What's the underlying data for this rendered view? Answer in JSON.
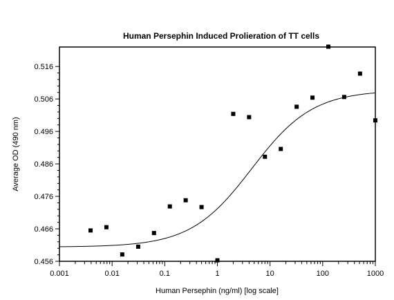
{
  "chart_data": {
    "type": "scatter",
    "title": "Human Persephin Induced Prolieration of TT cells",
    "xlabel": "Human Persephin (ng/ml) [log scale]",
    "ylabel": "Average OD (490 nm)",
    "x_scale": "log",
    "xlim": [
      0.001,
      1000
    ],
    "ylim": [
      0.456,
      0.522
    ],
    "x_ticks": [
      "0.001",
      "0.01",
      "0.1",
      "1",
      "10",
      "100",
      "1000"
    ],
    "y_ticks": [
      "0.456",
      "0.466",
      "0.476",
      "0.486",
      "0.496",
      "0.506",
      "0.516"
    ],
    "grid": false,
    "legend": "none",
    "marker_color": "#000000",
    "curve_color": "#000000",
    "series": [
      {
        "type": "scatter",
        "marker": "square",
        "points": [
          {
            "x": 0.0039,
            "y": 0.4655
          },
          {
            "x": 0.0078,
            "y": 0.4665
          },
          {
            "x": 0.0156,
            "y": 0.4581
          },
          {
            "x": 0.0313,
            "y": 0.4605
          },
          {
            "x": 0.0625,
            "y": 0.4647
          },
          {
            "x": 0.125,
            "y": 0.4729
          },
          {
            "x": 0.25,
            "y": 0.4748
          },
          {
            "x": 0.5,
            "y": 0.4727
          },
          {
            "x": 1,
            "y": 0.4563
          },
          {
            "x": 2,
            "y": 0.5014
          },
          {
            "x": 4,
            "y": 0.5004
          },
          {
            "x": 8,
            "y": 0.4882
          },
          {
            "x": 16,
            "y": 0.4906
          },
          {
            "x": 32,
            "y": 0.5036
          },
          {
            "x": 64,
            "y": 0.5064
          },
          {
            "x": 128,
            "y": 0.5221
          },
          {
            "x": 256,
            "y": 0.5066
          },
          {
            "x": 512,
            "y": 0.5138
          },
          {
            "x": 1000,
            "y": 0.4994
          }
        ]
      },
      {
        "type": "line",
        "fit": "four-parameter logistic",
        "curve": {
          "bottom": 0.4604,
          "top": 0.5087,
          "ec50": 4.5,
          "hill": 0.75
        }
      }
    ]
  }
}
